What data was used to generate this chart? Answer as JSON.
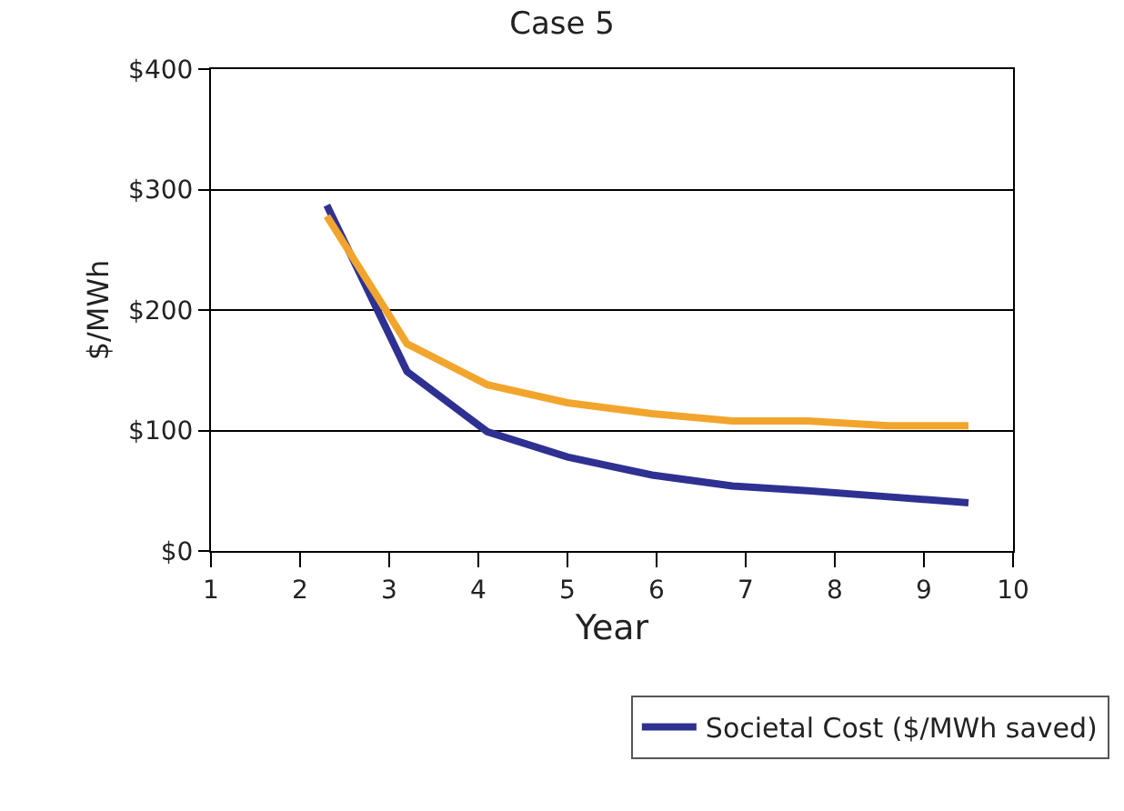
{
  "chart_data": {
    "type": "line",
    "title": "Case 5",
    "xlabel": "Year",
    "ylabel": "$/MWh",
    "xlim": [
      1,
      10
    ],
    "xticks": [
      1,
      2,
      3,
      4,
      5,
      6,
      7,
      8,
      9,
      10
    ],
    "ylim": [
      0,
      400
    ],
    "yticks": [
      {
        "value": 0,
        "label": "$0"
      },
      {
        "value": 100,
        "label": "$100"
      },
      {
        "value": 200,
        "label": "$200"
      },
      {
        "value": 300,
        "label": "$300"
      },
      {
        "value": 400,
        "label": "$400"
      }
    ],
    "grid": "y",
    "legend": "bottom",
    "marker": "none",
    "line_style": "solid",
    "series": [
      {
        "name": "Societal Cost ($/MWh saved)",
        "color": "#2e3192",
        "x": [
          2.3,
          3.2,
          4.1,
          5.0,
          5.95,
          6.85,
          7.7,
          8.6,
          9.5
        ],
        "values": [
          287,
          149,
          99,
          78,
          63,
          54,
          50,
          45,
          40
        ]
      },
      {
        "color": "#f2a52d",
        "x": [
          2.3,
          3.2,
          4.1,
          5.0,
          5.95,
          6.85,
          7.7,
          8.6,
          9.5
        ],
        "values": [
          278,
          172,
          138,
          123,
          114,
          108,
          108,
          104,
          104
        ]
      }
    ]
  }
}
